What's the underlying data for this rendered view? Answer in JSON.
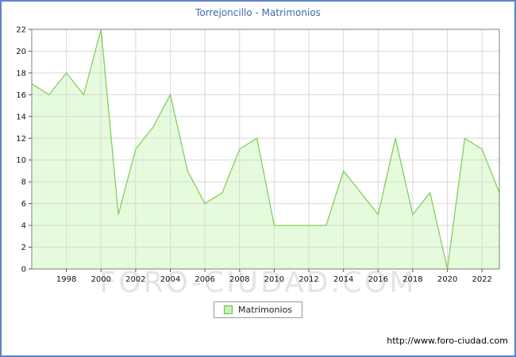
{
  "title": "Torrejoncillo - Matrimonios",
  "legend_label": "Matrimonios",
  "watermark": "FORO-CIUDAD.COM",
  "footer_url": "http://www.foro-ciudad.com",
  "colors": {
    "frame_border": "#5c84c8",
    "title_text": "#4169ab",
    "grid": "#d8d8d8",
    "axis_frame": "#7f7f7f",
    "tick_text": "#111111",
    "watermark_text": "#e4e4e4"
  },
  "chart_data": {
    "type": "area",
    "title": "Torrejoncillo - Matrimonios",
    "series_name": "Matrimonios",
    "years": [
      1996,
      1997,
      1998,
      1999,
      2000,
      2001,
      2002,
      2003,
      2004,
      2005,
      2006,
      2007,
      2008,
      2009,
      2010,
      2011,
      2012,
      2013,
      2014,
      2015,
      2016,
      2017,
      2018,
      2019,
      2020,
      2021,
      2022,
      2023
    ],
    "values": [
      17,
      16,
      18,
      16,
      22,
      5,
      11,
      13,
      16,
      9,
      6,
      7,
      11,
      12,
      4,
      4,
      4,
      4,
      9,
      7,
      5,
      12,
      5,
      7,
      0,
      12,
      11,
      7
    ],
    "ylim": [
      0,
      22
    ],
    "y_tick_step": 2,
    "x_tick_labels": [
      1998,
      2000,
      2002,
      2004,
      2006,
      2008,
      2010,
      2012,
      2014,
      2016,
      2018,
      2020,
      2022
    ],
    "grid": true,
    "legend_position": "bottom-center",
    "fill_color": "#e6fbdc",
    "line_color": "#82cf5e"
  }
}
